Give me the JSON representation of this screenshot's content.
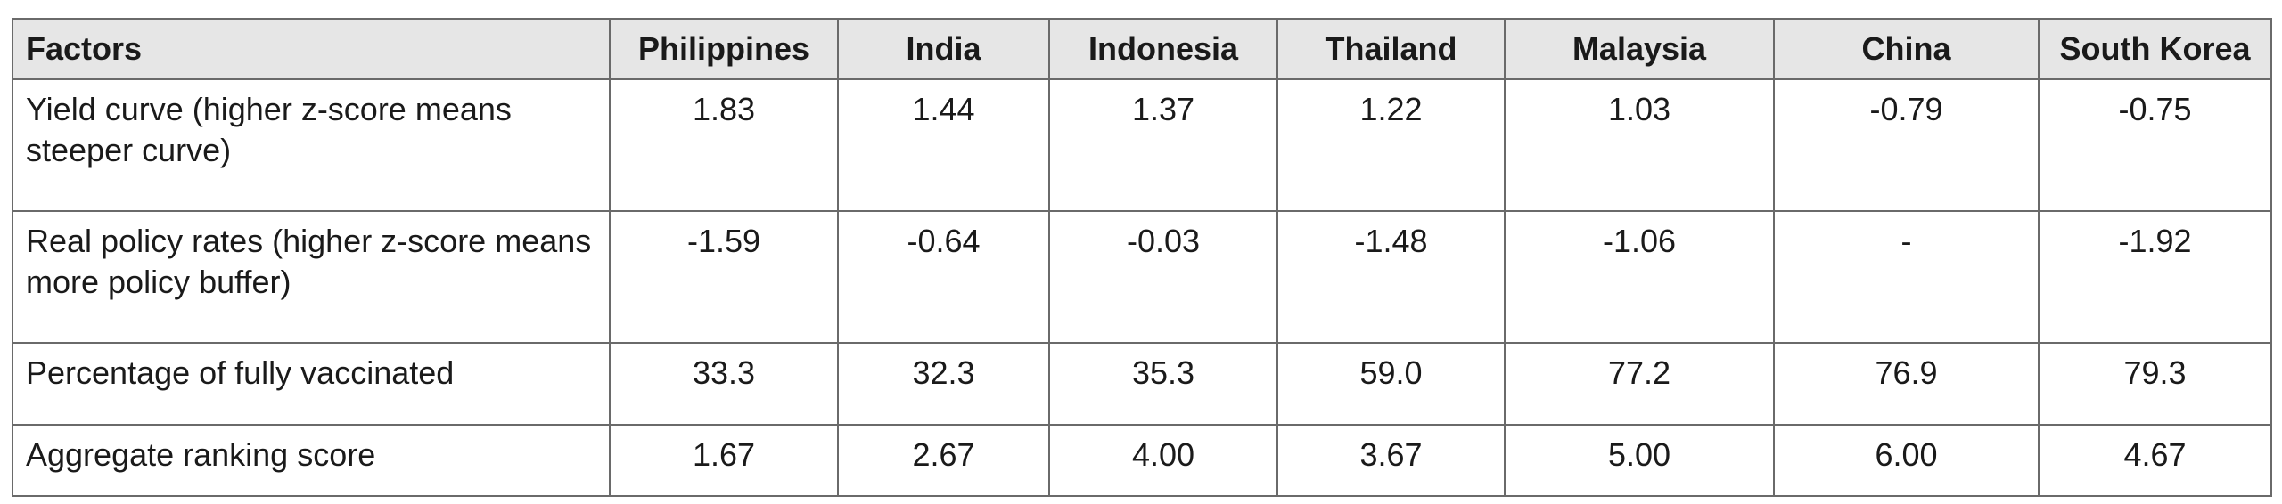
{
  "table": {
    "header": [
      "Factors",
      "Philippines",
      "India",
      "Indonesia",
      "Thailand",
      "Malaysia",
      "China",
      "South Korea"
    ],
    "rows": [
      [
        "Yield curve (higher z-score means steeper curve)",
        "1.83",
        "1.44",
        "1.37",
        "1.22",
        "1.03",
        "-0.79",
        "-0.75"
      ],
      [
        "Real policy rates (higher z-score means more policy buffer)",
        "-1.59",
        "-0.64",
        "-0.03",
        "-1.48",
        "-1.06",
        "-",
        "-1.92"
      ],
      [
        "Percentage of fully vaccinated",
        "33.3",
        "32.3",
        "35.3",
        "59.0",
        "77.2",
        "76.9",
        "79.3"
      ],
      [
        "Aggregate ranking score",
        "1.67",
        "2.67",
        "4.00",
        "3.67",
        "5.00",
        "6.00",
        "4.67"
      ]
    ]
  }
}
